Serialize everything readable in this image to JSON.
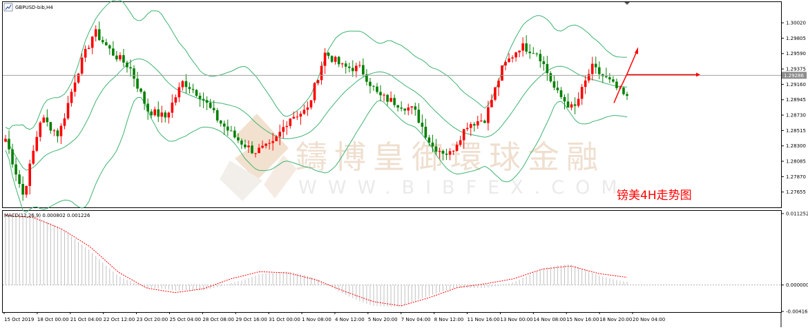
{
  "window": {
    "title": "GBPUSD-bib,H4"
  },
  "chart_data": [
    {
      "type": "candlestick",
      "symbol": "GBPUSD-bib",
      "timeframe": "H4",
      "title": "GBPUSD-bib,H4",
      "overlays": [
        "Bollinger Bands"
      ],
      "ylim": [
        1.2745,
        1.303
      ],
      "y_ticks": [
        "1.30020",
        "1.29805",
        "1.29590",
        "1.29375",
        "1.29160",
        "1.28945",
        "1.28730",
        "1.28515",
        "1.28300",
        "1.28085",
        "1.27870",
        "1.27655"
      ],
      "current_price": "1.29286",
      "x_ticks": [
        "15 Oct 2019",
        "18 Oct 00:00",
        "21 Oct 04:00",
        "22 Oct 12:00",
        "23 Oct 20:00",
        "25 Oct 04:00",
        "28 Oct 08:00",
        "29 Oct 16:00",
        "31 Oct 00:00",
        "1 Nov 08:00",
        "4 Nov 12:00",
        "5 Nov 20:00",
        "7 Nov 04:00",
        "8 Nov 12:00",
        "11 Nov 16:00",
        "13 Nov 00:00",
        "14 Nov 08:00",
        "15 Nov 16:00",
        "18 Nov 20:00",
        "20 Nov 04:00"
      ],
      "up_color": "#ff0000",
      "down_color": "#008000",
      "band_color": "#3cb371",
      "close_path": [
        1.284,
        1.276,
        1.287,
        1.2845,
        1.293,
        1.299,
        1.296,
        1.294,
        1.288,
        1.287,
        1.292,
        1.29,
        1.2865,
        1.284,
        1.2822,
        1.283,
        1.287,
        1.288,
        1.296,
        1.294,
        1.2938,
        1.29,
        1.289,
        1.288,
        1.283,
        1.2818,
        1.286,
        1.2868,
        1.294,
        1.297,
        1.296,
        1.2905,
        1.288,
        1.294,
        1.292,
        1.2896
      ],
      "annotation": "镑美4H走势图"
    },
    {
      "type": "macd",
      "title": "MACD(12,26,9) 0.000802 0.001226",
      "params": "12,26,9",
      "macd": "0.000802",
      "signal": "0.001226",
      "ylim": [
        -0.004163,
        0.011252
      ],
      "y_ticks": [
        "0.011252",
        "0.000000",
        "-0.004163"
      ],
      "histogram_color": "#c0c0c0",
      "signal_color": "#ff0000",
      "signal_path": [
        0.011,
        0.0106,
        0.0088,
        0.006,
        0.002,
        -0.0005,
        -0.0012,
        -0.0006,
        0.001,
        0.0021,
        0.0019,
        0.0008,
        -0.001,
        -0.0026,
        -0.0033,
        -0.002,
        -0.0004,
        0.0002,
        0.001,
        0.0025,
        0.003,
        0.0018,
        0.0012
      ]
    }
  ],
  "watermark": {
    "brand": "鑄博皇御環球金融",
    "url": "WWW.BIBFEX.COM"
  }
}
